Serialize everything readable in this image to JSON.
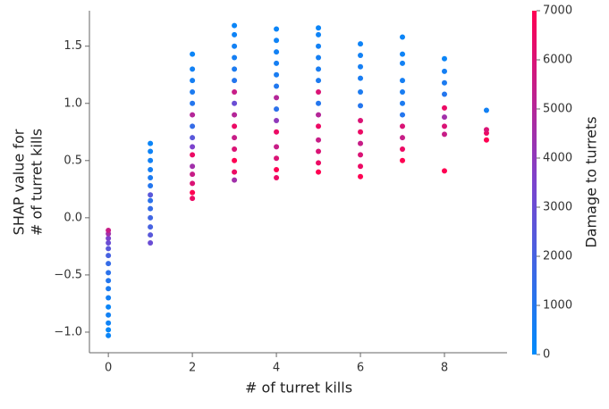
{
  "chart_data": {
    "type": "scatter",
    "xlabel": "# of turret kills",
    "ylabel": [
      "SHAP value for",
      "# of turret kills"
    ],
    "colorbar_label": "Damage to turrets",
    "xlim": [
      -0.45,
      9.49
    ],
    "ylim": [
      -1.18,
      1.81
    ],
    "xticks": [
      0,
      2,
      4,
      6,
      8
    ],
    "yticks": [
      {
        "value": -1.0,
        "label": "−1.0"
      },
      {
        "value": -0.5,
        "label": "−0.5"
      },
      {
        "value": 0.0,
        "label": "0.0"
      },
      {
        "value": 0.5,
        "label": "0.5"
      },
      {
        "value": 1.0,
        "label": "1.0"
      },
      {
        "value": 1.5,
        "label": "1.5"
      }
    ],
    "clim": [
      0,
      7000
    ],
    "cticks": [
      0,
      1000,
      2000,
      3000,
      4000,
      5000,
      6000,
      7000
    ],
    "cmap": [
      "#008bfb",
      "#7c43cd",
      "#ff0052"
    ],
    "x": [
      0,
      0,
      0,
      0,
      0,
      0,
      0,
      0,
      0,
      0,
      0,
      0,
      0,
      0,
      0,
      0,
      1,
      1,
      1,
      1,
      1,
      1,
      1,
      1,
      1,
      1,
      1,
      1,
      1,
      2,
      2,
      2,
      2,
      2,
      2,
      2,
      2,
      2,
      2,
      2,
      2,
      2,
      2,
      2,
      3,
      3,
      3,
      3,
      3,
      3,
      3,
      3,
      3,
      3,
      3,
      3,
      3,
      3,
      3,
      4,
      4,
      4,
      4,
      4,
      4,
      4,
      4,
      4,
      4,
      4,
      4,
      4,
      4,
      5,
      5,
      5,
      5,
      5,
      5,
      5,
      5,
      5,
      5,
      5,
      5,
      5,
      5,
      6,
      6,
      6,
      6,
      6,
      6,
      6,
      6,
      6,
      6,
      6,
      6,
      7,
      7,
      7,
      7,
      7,
      7,
      7,
      7,
      7,
      7,
      7,
      8,
      8,
      8,
      8,
      8,
      8,
      8,
      8,
      8,
      9,
      9,
      9,
      9
    ],
    "y": [
      -1.03,
      -0.98,
      -0.92,
      -0.85,
      -0.78,
      -0.7,
      -0.62,
      -0.55,
      -0.48,
      -0.4,
      -0.33,
      -0.27,
      -0.22,
      -0.18,
      -0.14,
      -0.11,
      -0.22,
      -0.15,
      -0.08,
      0.0,
      0.08,
      0.15,
      0.2,
      0.28,
      0.35,
      0.42,
      0.5,
      0.58,
      0.65,
      0.17,
      0.22,
      0.3,
      0.38,
      0.45,
      0.55,
      0.62,
      0.7,
      0.8,
      0.9,
      1.0,
      1.1,
      1.2,
      1.3,
      1.43,
      0.33,
      0.4,
      0.5,
      0.6,
      0.7,
      0.8,
      0.9,
      1.0,
      1.1,
      1.2,
      1.3,
      1.4,
      1.5,
      1.6,
      1.68,
      0.35,
      0.42,
      0.52,
      0.62,
      0.75,
      0.85,
      0.95,
      1.05,
      1.15,
      1.25,
      1.35,
      1.45,
      1.55,
      1.65,
      0.4,
      0.48,
      0.58,
      0.68,
      0.8,
      0.9,
      1.0,
      1.1,
      1.2,
      1.3,
      1.4,
      1.5,
      1.6,
      1.66,
      0.36,
      0.45,
      0.55,
      0.65,
      0.75,
      0.85,
      0.98,
      1.1,
      1.22,
      1.32,
      1.42,
      1.52,
      0.5,
      0.6,
      0.7,
      0.8,
      0.9,
      1.0,
      1.1,
      1.2,
      1.35,
      1.43,
      1.58,
      0.41,
      0.73,
      0.8,
      0.88,
      0.96,
      1.08,
      1.18,
      1.28,
      1.39,
      0.68,
      0.74,
      0.77,
      0.94
    ],
    "color_values": [
      300,
      200,
      400,
      500,
      300,
      600,
      800,
      1000,
      1200,
      1500,
      2000,
      2500,
      3000,
      3500,
      4500,
      5500,
      3000,
      2500,
      2000,
      1800,
      1500,
      1200,
      2500,
      1000,
      800,
      600,
      500,
      400,
      300,
      6500,
      7000,
      6000,
      5500,
      4500,
      6500,
      3500,
      2500,
      1500,
      5000,
      1000,
      800,
      600,
      500,
      300,
      4500,
      6500,
      7000,
      6000,
      5500,
      6500,
      5000,
      3000,
      5500,
      1000,
      800,
      600,
      500,
      400,
      300,
      6500,
      7000,
      6000,
      5500,
      6500,
      4000,
      1200,
      5000,
      900,
      700,
      600,
      500,
      400,
      300,
      7000,
      6500,
      6000,
      5500,
      6500,
      5000,
      1000,
      6000,
      800,
      700,
      600,
      500,
      400,
      300,
      7000,
      6500,
      6000,
      5500,
      6500,
      6000,
      1000,
      800,
      700,
      600,
      500,
      400,
      7000,
      6500,
      5500,
      6000,
      1000,
      800,
      700,
      600,
      500,
      400,
      300,
      7000,
      5500,
      6000,
      4500,
      6500,
      1000,
      800,
      600,
      300,
      7000,
      6500,
      6000,
      500
    ]
  }
}
